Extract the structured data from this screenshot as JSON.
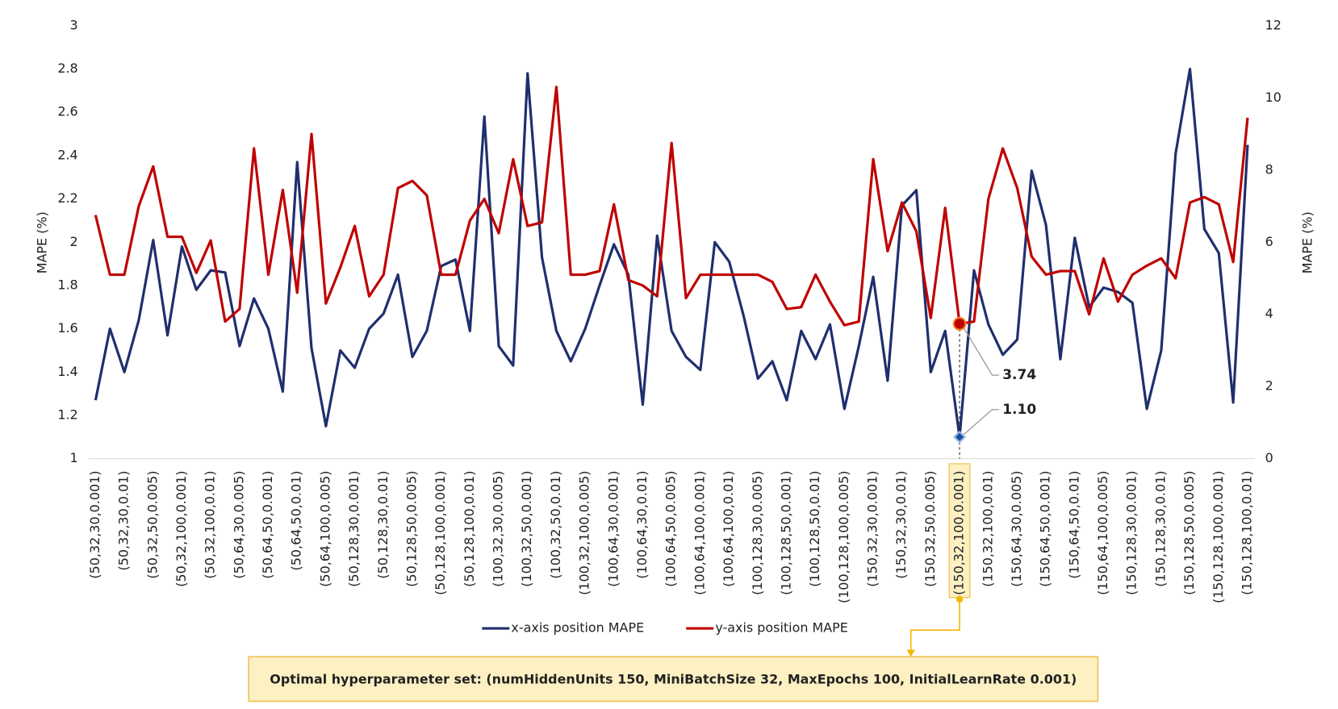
{
  "chart_data": {
    "type": "line",
    "y_label": "MAPE (%)",
    "y2_label": "MAPE (%)",
    "categories": [
      "(50,32,30,0.001)",
      null,
      "(50,32,30,0.01)",
      null,
      "(50,32,50,0.005)",
      null,
      "(50,32,100,0.001)",
      null,
      "(50,32,100,0.01)",
      null,
      "(50,64,30,0.005)",
      null,
      "(50,64,50,0.001)",
      null,
      "(50,64,50,0.01)",
      null,
      "(50,64,100,0.005)",
      null,
      "(50,128,30,0.001)",
      null,
      "(50,128,30,0.01)",
      null,
      "(50,128,50,0.005)",
      null,
      "(50,128,100,0.001)",
      null,
      "(50,128,100,0.01)",
      null,
      "(100,32,30,0.005)",
      null,
      "(100,32,50,0.001)",
      null,
      "(100,32,50,0.01)",
      null,
      "(100,32,100,0.005)",
      null,
      "(100,64,30,0.001)",
      null,
      "(100,64,30,0.01)",
      null,
      "(100,64,50,0.005)",
      null,
      "(100,64,100,0.001)",
      null,
      "(100,64,100,0.01)",
      null,
      "(100,128,30,0.005)",
      null,
      "(100,128,50,0.001)",
      null,
      "(100,128,50,0.01)",
      null,
      "(100,128,100,0.005)",
      null,
      "(150,32,30,0.001)",
      null,
      "(150,32,30,0.01)",
      null,
      "(150,32,50,0.005)",
      null,
      "(150,32,100,0.001)",
      null,
      "(150,32,100,0.01)",
      null,
      "(150,64,30,0.005)",
      null,
      "(150,64,50,0.001)",
      null,
      "(150,64,50,0.01)",
      null,
      "(150,64,100,0.005)",
      null,
      "(150,128,30,0.001)",
      null,
      "(150,128,30,0.01)",
      null,
      "(150,128,50,0.005)",
      null,
      "(150,128,100,0.001)",
      null,
      "(150,128,100,0.01)"
    ],
    "series": [
      {
        "name": "x-axis position MAPE",
        "color": "#1f2f6e",
        "values": [
          1.27,
          1.6,
          1.4,
          1.64,
          2.01,
          1.57,
          1.98,
          1.78,
          1.87,
          1.86,
          1.52,
          1.74,
          1.6,
          1.31,
          2.37,
          1.51,
          1.15,
          1.5,
          1.42,
          1.6,
          1.67,
          1.85,
          1.47,
          1.59,
          1.89,
          1.92,
          1.59,
          2.58,
          1.52,
          1.43,
          2.78,
          1.93,
          1.59,
          1.45,
          1.6,
          1.8,
          1.99,
          1.85,
          1.25,
          2.03,
          1.59,
          1.47,
          1.41,
          2.0,
          1.91,
          1.66,
          1.37,
          1.45,
          1.27,
          1.59,
          1.46,
          1.62,
          1.23,
          1.52,
          1.84,
          1.36,
          2.17,
          2.24,
          1.4,
          1.59,
          1.1,
          1.87,
          1.62,
          1.48,
          1.55,
          2.33,
          2.08,
          1.46,
          2.02,
          1.7,
          1.79,
          1.77,
          1.72,
          1.23,
          1.5,
          2.41,
          2.8,
          2.06,
          1.95,
          1.26,
          2.45
        ],
        "value_labels": [
          null,
          null,
          null,
          null,
          null,
          null,
          null,
          null,
          null,
          null,
          null,
          null,
          null,
          null,
          null,
          null,
          null,
          null,
          null,
          null,
          null,
          null,
          null,
          null,
          null,
          null,
          null,
          null,
          null,
          null,
          null,
          null,
          null,
          null,
          null,
          null,
          null,
          null,
          null,
          null,
          null,
          null,
          null,
          null,
          null,
          null,
          null,
          null,
          null,
          null,
          null,
          null,
          null,
          null,
          null,
          null,
          null,
          null,
          null,
          null,
          "1.10",
          null,
          null,
          null,
          null,
          null,
          null,
          null,
          null,
          null,
          null,
          null,
          null,
          null,
          null,
          null,
          null,
          null,
          null,
          null,
          null
        ]
      },
      {
        "name": "y-axis position MAPE",
        "color": "#c00000",
        "axis": "y2",
        "values": [
          6.75,
          5.1,
          5.1,
          7.0,
          8.1,
          6.15,
          6.15,
          5.15,
          6.05,
          3.8,
          4.15,
          8.6,
          5.1,
          7.45,
          4.6,
          9.0,
          4.3,
          5.3,
          6.45,
          4.5,
          5.1,
          7.5,
          7.7,
          7.3,
          5.1,
          5.1,
          6.6,
          7.2,
          6.25,
          8.3,
          6.45,
          6.55,
          10.3,
          5.1,
          5.1,
          5.2,
          7.05,
          4.95,
          4.8,
          4.5,
          8.75,
          4.45,
          5.1,
          5.1,
          5.1,
          5.1,
          5.1,
          4.9,
          4.15,
          4.2,
          5.1,
          4.35,
          3.7,
          3.8,
          8.3,
          5.75,
          7.1,
          6.3,
          3.9,
          6.95,
          3.74,
          3.8,
          7.2,
          8.6,
          7.5,
          5.6,
          5.1,
          5.2,
          5.2,
          4.0,
          5.55,
          4.35,
          5.1,
          5.35,
          5.55,
          5.0,
          7.1,
          7.25,
          7.05,
          5.45,
          9.45
        ],
        "value_labels": [
          null,
          null,
          null,
          null,
          null,
          null,
          null,
          null,
          null,
          null,
          null,
          null,
          null,
          null,
          null,
          null,
          null,
          null,
          null,
          null,
          null,
          null,
          null,
          null,
          null,
          null,
          null,
          null,
          null,
          null,
          null,
          null,
          null,
          null,
          null,
          null,
          null,
          null,
          null,
          null,
          null,
          null,
          null,
          null,
          null,
          null,
          null,
          null,
          null,
          null,
          null,
          null,
          null,
          null,
          null,
          null,
          null,
          null,
          null,
          null,
          "3.74",
          null,
          null,
          null,
          null,
          null,
          null,
          null,
          null,
          null,
          null,
          null,
          null,
          null,
          null,
          null,
          null,
          null,
          null,
          null,
          null
        ]
      }
    ],
    "ylim": [
      1,
      3
    ],
    "yticks": [
      1,
      1.2,
      1.4,
      1.6,
      1.8,
      2,
      2.2,
      2.4,
      2.6,
      2.8,
      3
    ],
    "y2lim": [
      0,
      12
    ],
    "y2ticks": [
      0,
      2,
      4,
      6,
      8,
      10,
      12
    ],
    "grid": false,
    "legend": "bottom",
    "note": "Optimal hyperparameter set: (numHiddenUnits 150, MiniBatchSize 32, MaxEpochs 100, InitialLearnRate 0.001)"
  }
}
